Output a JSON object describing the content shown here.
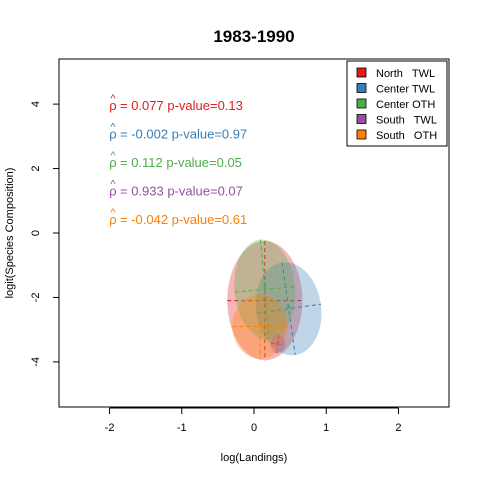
{
  "chart_data": {
    "type": "scatter",
    "title": "1983-1990",
    "xlabel": "log(Landings)",
    "ylabel": "logit(Species Composition)",
    "xlim": [
      -2.7,
      2.7
    ],
    "ylim": [
      -5.4,
      5.4
    ],
    "xticks": [
      -2,
      -1,
      0,
      1,
      2
    ],
    "yticks": [
      -4,
      -2,
      0,
      2,
      4
    ],
    "grid": false,
    "legend_position": "top-right",
    "legend_labels": [
      "North   TWL",
      "Center TWL",
      "Center OTH",
      "South   TWL",
      "South   OTH"
    ],
    "series": [
      {
        "name": "North   TWL",
        "color": "#e41a1c",
        "center": [
          0.15,
          -2.1
        ],
        "rx": 0.52,
        "ry": 1.85,
        "angle": 0,
        "rho": "0.077",
        "pvalue": "0.13"
      },
      {
        "name": "Center TWL",
        "color": "#377eb8",
        "center": [
          0.48,
          -2.35
        ],
        "rx": 0.45,
        "ry": 1.45,
        "angle": -8,
        "rho": "-0.002",
        "pvalue": "0.97"
      },
      {
        "name": "Center OTH",
        "color": "#4daf4a",
        "center": [
          0.15,
          -1.75
        ],
        "rx": 0.42,
        "ry": 1.55,
        "angle": -5,
        "rho": "0.112",
        "pvalue": "0.05"
      },
      {
        "name": "South   TWL",
        "color": "#984ea3",
        "center": [
          0.33,
          -3.45
        ],
        "rx": 0.1,
        "ry": 0.28,
        "angle": 8,
        "rho": "0.933",
        "pvalue": "0.07"
      },
      {
        "name": "South   OTH",
        "color": "#ff7f00",
        "center": [
          0.08,
          -2.9
        ],
        "rx": 0.38,
        "ry": 1.0,
        "angle": 0,
        "rho": "-0.042",
        "pvalue": "0.61"
      }
    ],
    "annotations": [
      {
        "series": 0,
        "text": "= 0.077 p-value=0.13"
      },
      {
        "series": 1,
        "text": "= -0.002 p-value=0.97"
      },
      {
        "series": 2,
        "text": "= 0.112 p-value=0.05"
      },
      {
        "series": 3,
        "text": "= 0.933 p-value=0.07"
      },
      {
        "series": 4,
        "text": "= -0.042 p-value=0.61"
      }
    ],
    "rho_symbol": "ρ",
    "hat_symbol": "^"
  }
}
